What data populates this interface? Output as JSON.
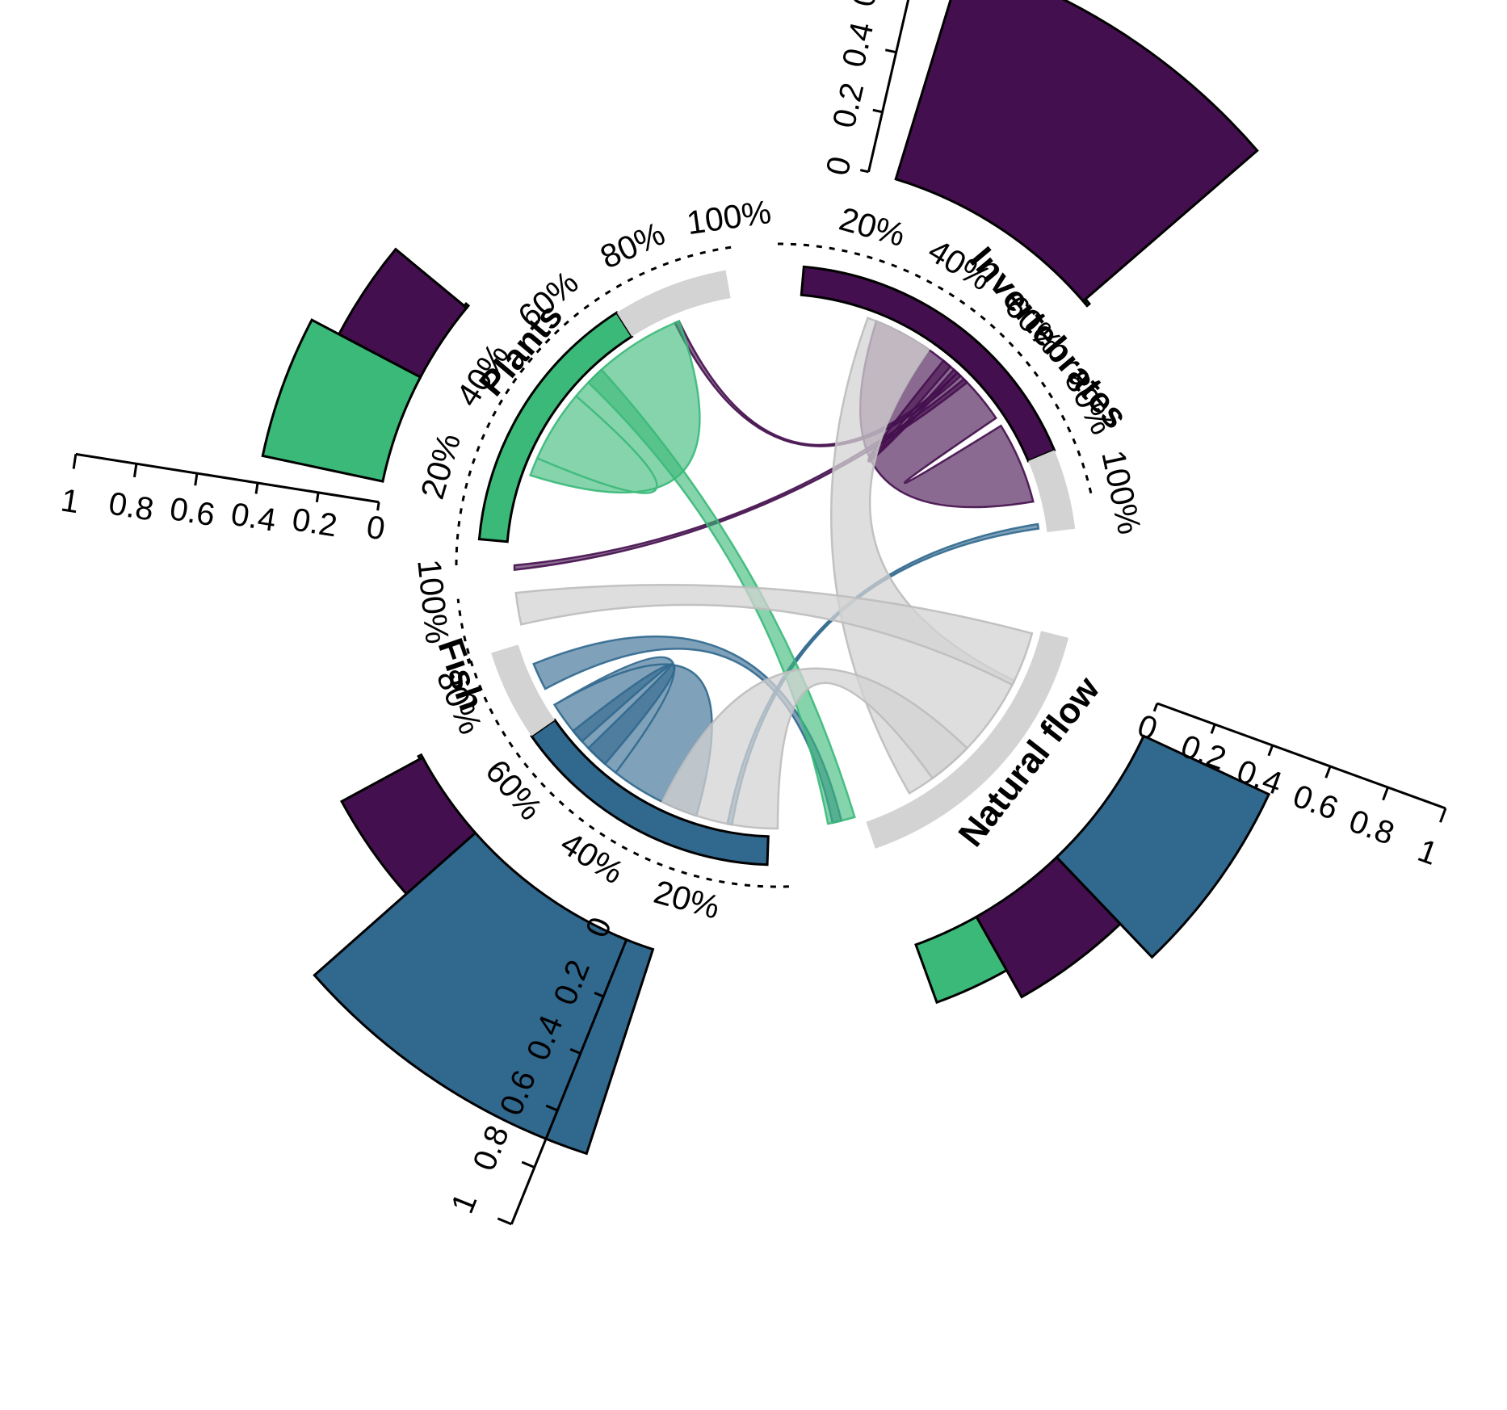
{
  "colors": {
    "invertebrates": "#440f4e",
    "fish": "#31688e",
    "plants": "#3bb979",
    "natural_flow": "#d3d3d3",
    "link_invertebrates": "#440f4e",
    "link_fish": "#31688e",
    "link_plants": "#3bb979",
    "link_natural_flow": "#d3d3d3"
  },
  "chart_data": {
    "type": "chord",
    "sectors": [
      {
        "id": "invertebrates",
        "label": "Invertebrates",
        "color_key": "invertebrates",
        "filled_fraction": 0.8,
        "pct_labels": [
          "20%",
          "40%",
          "60%",
          "80%",
          "100%"
        ]
      },
      {
        "id": "natural_flow",
        "label": "Natural flow",
        "color_key": "natural_flow",
        "filled_fraction": 1.0,
        "pct_labels": []
      },
      {
        "id": "fish",
        "label": "Fish",
        "color_key": "fish",
        "filled_fraction": 0.75,
        "pct_labels": [
          "20%",
          "40%",
          "60%",
          "80%",
          "100%"
        ]
      },
      {
        "id": "plants",
        "label": "Plants",
        "color_key": "plants",
        "filled_fraction": 0.7,
        "pct_labels": [
          "20%",
          "40%",
          "60%",
          "80%",
          "100%"
        ]
      }
    ],
    "outer_bars": [
      {
        "sector": "invertebrates",
        "segments": [
          {
            "series": "invertebrates",
            "value": 0.75
          },
          {
            "series": "fish",
            "value": 0.01
          },
          {
            "series": "plants",
            "value": 0.01
          }
        ]
      },
      {
        "sector": "natural_flow",
        "segments": [
          {
            "series": "fish",
            "value": 0.45
          },
          {
            "series": "invertebrates",
            "value": 0.3
          },
          {
            "series": "plants",
            "value": 0.2
          }
        ]
      },
      {
        "sector": "fish",
        "segments": [
          {
            "series": "fish",
            "value": 0.7
          },
          {
            "series": "invertebrates",
            "value": 0.3
          },
          {
            "series": "plants",
            "value": 0.01
          }
        ]
      },
      {
        "sector": "plants",
        "segments": [
          {
            "series": "plants",
            "value": 0.4
          },
          {
            "series": "invertebrates",
            "value": 0.3
          },
          {
            "series": "fish",
            "value": 0.01
          }
        ]
      }
    ],
    "axis_ticks": [
      "0",
      "0.2",
      "0.4",
      "0.6",
      "0.8",
      "1"
    ],
    "axis_range": [
      0,
      1
    ],
    "links": [
      {
        "from": "invertebrates",
        "to": "invertebrates",
        "color_key": "link_invertebrates",
        "kind": "ribbon"
      },
      {
        "from": "invertebrates",
        "to": "invertebrates",
        "color_key": "link_invertebrates",
        "kind": "ribbon"
      },
      {
        "from": "invertebrates",
        "to": "plants",
        "color_key": "link_invertebrates",
        "kind": "thin"
      },
      {
        "from": "invertebrates",
        "to": "fish",
        "color_key": "link_invertebrates",
        "kind": "thin"
      },
      {
        "from": "fish",
        "to": "fish",
        "color_key": "link_fish",
        "kind": "ribbon"
      },
      {
        "from": "fish",
        "to": "fish",
        "color_key": "link_fish",
        "kind": "ribbon"
      },
      {
        "from": "fish",
        "to": "invertebrates",
        "color_key": "link_fish",
        "kind": "ribbon"
      },
      {
        "from": "fish",
        "to": "plants",
        "color_key": "link_fish",
        "kind": "thin"
      },
      {
        "from": "plants",
        "to": "plants",
        "color_key": "link_plants",
        "kind": "ribbon"
      },
      {
        "from": "plants",
        "to": "invertebrates",
        "color_key": "link_plants",
        "kind": "ribbon"
      },
      {
        "from": "natural_flow",
        "to": "invertebrates",
        "color_key": "link_natural_flow",
        "kind": "ribbon"
      },
      {
        "from": "natural_flow",
        "to": "fish",
        "color_key": "link_natural_flow",
        "kind": "ribbon"
      },
      {
        "from": "natural_flow",
        "to": "plants",
        "color_key": "link_natural_flow",
        "kind": "ribbon"
      }
    ]
  }
}
